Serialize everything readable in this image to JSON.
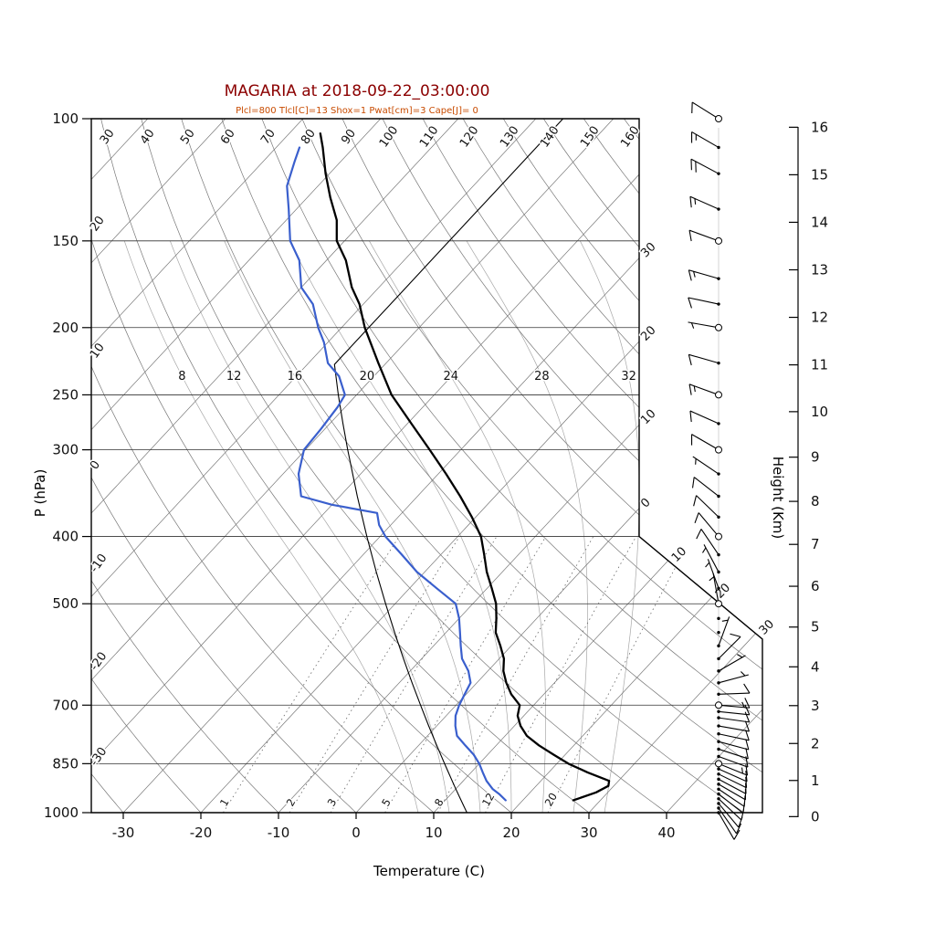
{
  "chart_data": {
    "type": "line",
    "variant": "skew-t-log-p-sounding",
    "title": "MAGARIA at 2018-09-22_03:00:00",
    "subtitle": "Plcl=800 Tlcl[C]=13 Shox=1 Pwat[cm]=3 Cape[J]= 0",
    "station": "MAGARIA",
    "timestamp": "2018-09-22_03:00:00",
    "axes": {
      "pressure": {
        "label": "P (hPa)",
        "ticks": [
          100,
          150,
          200,
          250,
          300,
          400,
          500,
          700,
          850,
          1000
        ]
      },
      "temperature": {
        "label": "Temperature (C)",
        "ticks": [
          -30,
          -20,
          -10,
          0,
          10,
          20,
          30,
          40
        ]
      },
      "height": {
        "label": "Height (Km)",
        "ticks": [
          0,
          1,
          2,
          3,
          4,
          5,
          6,
          7,
          8,
          9,
          10,
          11,
          12,
          13,
          14,
          15,
          16
        ]
      }
    },
    "grid": {
      "isotherms": {
        "values": [
          -110,
          -100,
          -90,
          -80,
          -70,
          -60,
          -50,
          -40,
          -30,
          -20,
          -10,
          0,
          10,
          20,
          30,
          40
        ],
        "edge_labels": [
          [
            -30,
            "30"
          ],
          [
            -20,
            "20"
          ],
          [
            -10,
            "10"
          ],
          [
            0,
            "0"
          ],
          [
            10,
            "10"
          ],
          [
            20,
            "20"
          ],
          [
            30,
            "30"
          ]
        ]
      },
      "dry_adiabats": {
        "values": [
          -30,
          -20,
          -10,
          0,
          10,
          20,
          30,
          40,
          50,
          60,
          70,
          80,
          90,
          100,
          110,
          120,
          130,
          140,
          150,
          160
        ]
      },
      "moist_adiabats": {
        "values": [
          8,
          12,
          16,
          20,
          24,
          28,
          32
        ]
      },
      "mixing_ratio": {
        "values": [
          1,
          2,
          3,
          5,
          8,
          12,
          20
        ]
      }
    },
    "series": {
      "temperature": {
        "name": "temperature",
        "color": "#000000",
        "points": [
          [
            960,
            26.5
          ],
          [
            935,
            28.5
          ],
          [
            915,
            29.3
          ],
          [
            900,
            28.8
          ],
          [
            875,
            25.0
          ],
          [
            850,
            21.5
          ],
          [
            825,
            18.5
          ],
          [
            800,
            15.5
          ],
          [
            775,
            12.8
          ],
          [
            750,
            10.8
          ],
          [
            725,
            9.2
          ],
          [
            700,
            8.2
          ],
          [
            675,
            5.8
          ],
          [
            650,
            3.8
          ],
          [
            625,
            2.0
          ],
          [
            600,
            0.6
          ],
          [
            575,
            -1.4
          ],
          [
            550,
            -3.6
          ],
          [
            525,
            -5.2
          ],
          [
            500,
            -7.0
          ],
          [
            475,
            -9.4
          ],
          [
            450,
            -12.0
          ],
          [
            425,
            -14.4
          ],
          [
            400,
            -17.0
          ],
          [
            375,
            -20.5
          ],
          [
            350,
            -24.5
          ],
          [
            325,
            -29.0
          ],
          [
            300,
            -34.0
          ],
          [
            275,
            -39.5
          ],
          [
            250,
            -45.5
          ],
          [
            225,
            -51.0
          ],
          [
            200,
            -57.0
          ],
          [
            185,
            -60.5
          ],
          [
            175,
            -63.5
          ],
          [
            160,
            -67.5
          ],
          [
            150,
            -71.0
          ],
          [
            140,
            -73.5
          ],
          [
            130,
            -77.0
          ],
          [
            120,
            -80.5
          ],
          [
            110,
            -84.0
          ],
          [
            105,
            -86.0
          ]
        ]
      },
      "dewpoint": {
        "name": "dewpoint",
        "color": "#3a5fcd",
        "points": [
          [
            960,
            17.8
          ],
          [
            940,
            16.2
          ],
          [
            925,
            14.8
          ],
          [
            900,
            13.0
          ],
          [
            875,
            11.5
          ],
          [
            850,
            10.0
          ],
          [
            825,
            8.2
          ],
          [
            800,
            6.0
          ],
          [
            775,
            3.8
          ],
          [
            750,
            2.4
          ],
          [
            725,
            1.2
          ],
          [
            700,
            0.4
          ],
          [
            675,
            -0.2
          ],
          [
            650,
            -0.8
          ],
          [
            625,
            -2.5
          ],
          [
            600,
            -4.8
          ],
          [
            575,
            -6.5
          ],
          [
            550,
            -8.2
          ],
          [
            525,
            -10.0
          ],
          [
            500,
            -12.2
          ],
          [
            475,
            -16.5
          ],
          [
            450,
            -21.0
          ],
          [
            425,
            -25.0
          ],
          [
            400,
            -29.3
          ],
          [
            385,
            -31.5
          ],
          [
            370,
            -33.2
          ],
          [
            360,
            -40.0
          ],
          [
            350,
            -45.0
          ],
          [
            325,
            -48.0
          ],
          [
            300,
            -50.2
          ],
          [
            280,
            -50.5
          ],
          [
            260,
            -51.0
          ],
          [
            250,
            -51.5
          ],
          [
            235,
            -54.5
          ],
          [
            225,
            -57.5
          ],
          [
            210,
            -60.5
          ],
          [
            200,
            -63.0
          ],
          [
            185,
            -66.5
          ],
          [
            175,
            -70.0
          ],
          [
            160,
            -73.5
          ],
          [
            150,
            -77.0
          ],
          [
            135,
            -81.0
          ],
          [
            125,
            -84.0
          ],
          [
            115,
            -86.0
          ],
          [
            110,
            -87.0
          ]
        ]
      },
      "standard_atmosphere": {
        "name": "standard-atmosphere",
        "color": "#000000",
        "surface_temp_c": 15,
        "lapse_c_per_km": 6.5,
        "tropopause_km": 11,
        "tropopause_temp_c": -56.5
      }
    },
    "winds": {
      "units": "kt",
      "barbs": [
        [
          1000,
          150,
          10
        ],
        [
          985,
          145,
          10
        ],
        [
          970,
          140,
          10
        ],
        [
          955,
          133,
          10
        ],
        [
          940,
          128,
          10
        ],
        [
          925,
          124,
          12
        ],
        [
          910,
          120,
          12
        ],
        [
          895,
          118,
          10
        ],
        [
          880,
          116,
          12
        ],
        [
          865,
          114,
          10
        ],
        [
          850,
          112,
          15
        ],
        [
          830,
          110,
          12
        ],
        [
          810,
          108,
          10
        ],
        [
          790,
          105,
          12
        ],
        [
          770,
          102,
          10
        ],
        [
          750,
          100,
          12
        ],
        [
          730,
          98,
          10
        ],
        [
          715,
          96,
          10
        ],
        [
          700,
          95,
          15
        ],
        [
          675,
          88,
          8
        ],
        [
          650,
          75,
          5
        ],
        [
          625,
          60,
          5
        ],
        [
          600,
          45,
          8
        ],
        [
          575,
          20,
          3
        ],
        [
          550,
          0,
          0
        ],
        [
          525,
          0,
          0
        ],
        [
          500,
          350,
          5
        ],
        [
          475,
          340,
          3
        ],
        [
          450,
          332,
          5
        ],
        [
          425,
          326,
          8
        ],
        [
          400,
          320,
          10
        ],
        [
          375,
          314,
          10
        ],
        [
          350,
          308,
          10
        ],
        [
          325,
          304,
          6
        ],
        [
          300,
          300,
          10
        ],
        [
          275,
          294,
          10
        ],
        [
          250,
          290,
          15
        ],
        [
          225,
          286,
          10
        ],
        [
          200,
          280,
          5
        ],
        [
          185,
          282,
          10
        ],
        [
          170,
          286,
          15
        ],
        [
          150,
          290,
          10
        ],
        [
          135,
          294,
          15
        ],
        [
          120,
          298,
          20
        ],
        [
          110,
          300,
          15
        ],
        [
          100,
          302,
          12
        ]
      ]
    },
    "colors": {
      "title": "#8b0000",
      "subtitle": "#c84b00",
      "grid": "#777777",
      "grid_light": "#a8a8a8",
      "temperature_curve": "#000000",
      "dewpoint_curve": "#3a5fcd"
    }
  }
}
